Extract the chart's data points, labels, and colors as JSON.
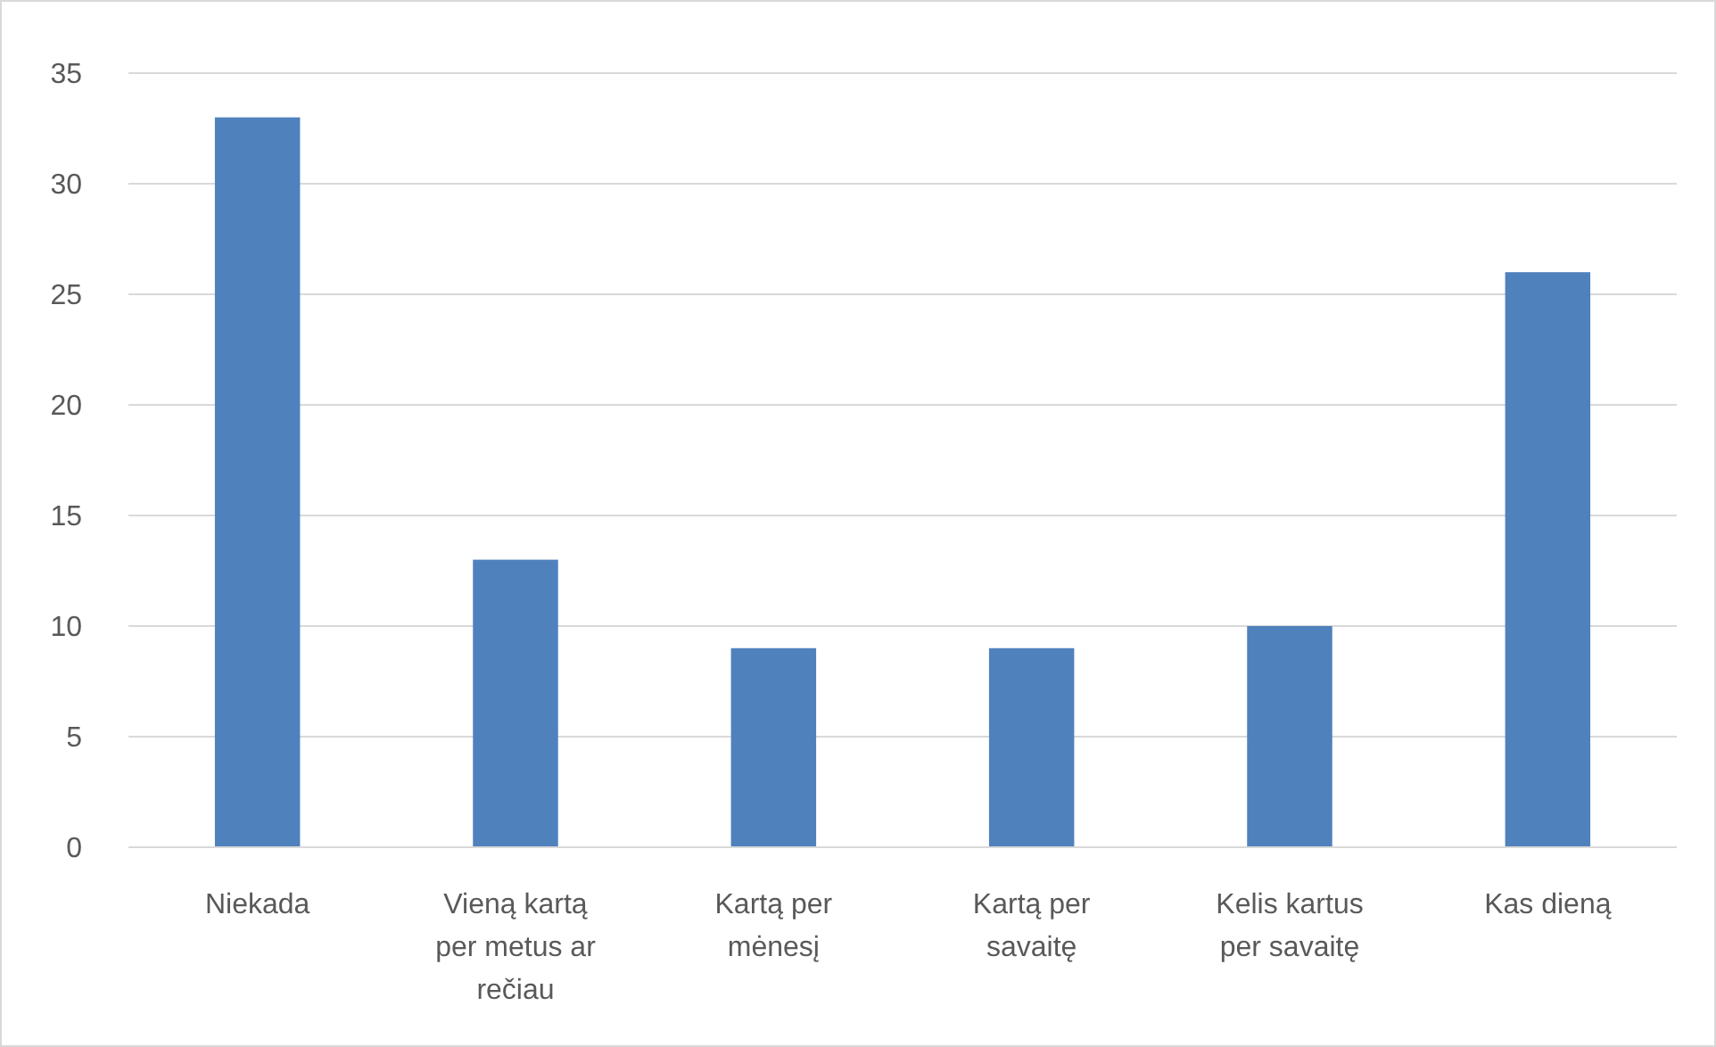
{
  "chart_data": {
    "type": "bar",
    "categories": [
      "Niekada",
      "Vieną kartą per metus ar rečiau",
      "Kartą per mėnesį",
      "Kartą per savaitę",
      "Kelis kartus per savaitę",
      "Kas dieną"
    ],
    "values": [
      33,
      13,
      9,
      9,
      10,
      26
    ],
    "color": "#4f81bd",
    "ylim": [
      0,
      35
    ],
    "yticks": [
      0,
      5,
      10,
      15,
      20,
      25,
      30,
      35
    ],
    "grid": "y"
  }
}
